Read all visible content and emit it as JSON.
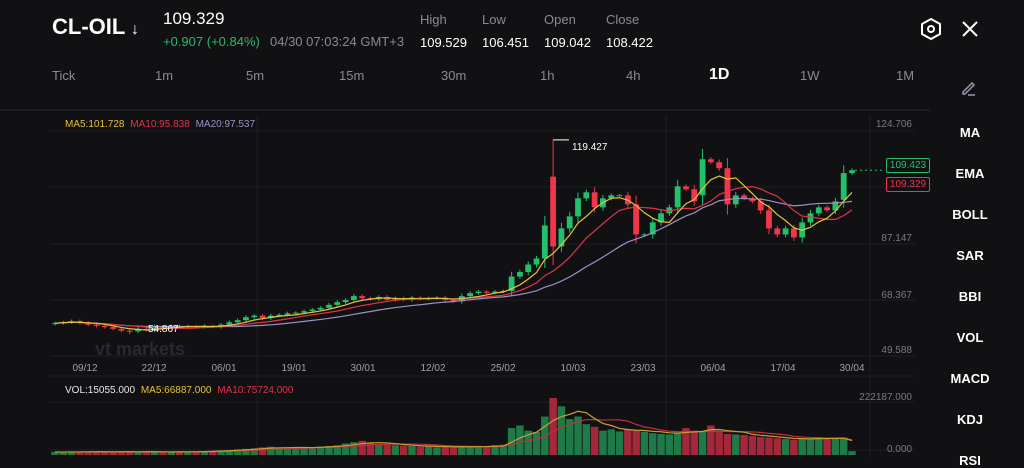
{
  "header": {
    "symbol": "CL-OIL",
    "symbol_arrow": "↓",
    "last_price": "109.329",
    "change": "+0.907 (+0.84%)",
    "timestamp": "04/30 07:03:24 GMT+3",
    "stats": [
      {
        "label": "High",
        "value": "109.529"
      },
      {
        "label": "Low",
        "value": "106.451"
      },
      {
        "label": "Open",
        "value": "109.042"
      },
      {
        "label": "Close",
        "value": "108.422"
      }
    ],
    "settings_icon": "hexagon-gear-icon",
    "close_icon": "close-icon"
  },
  "timeframes": [
    "Tick",
    "1m",
    "5m",
    "15m",
    "30m",
    "1h",
    "4h",
    "1D",
    "1W",
    "1M"
  ],
  "active_timeframe": "1D",
  "indicators": [
    "MA",
    "EMA",
    "BOLL",
    "SAR",
    "BBI",
    "VOL",
    "MACD",
    "KDJ",
    "RSI"
  ],
  "draw_icon": "pencil-icon",
  "colors": {
    "up": "#22c06a",
    "down": "#f0364a",
    "ma5": "#e8c23a",
    "ma10": "#e0344a",
    "ma20": "#9a90c8",
    "background": "#111113"
  },
  "price_legend": {
    "ma5": "MA5:101.728",
    "ma10": "MA10:95.838",
    "ma20": "MA20:97.537"
  },
  "volume_legend": {
    "vol": "VOL:15055.000",
    "ma5": "MA5:66887.000",
    "ma10": "MA10:75724.000"
  },
  "price_axis": [
    "124.706",
    "87.147",
    "68.367",
    "49.588"
  ],
  "volume_axis": [
    "222187.000",
    "0.000"
  ],
  "date_labels": [
    "09/12",
    "22/12",
    "06/01",
    "19/01",
    "30/01",
    "12/02",
    "25/02",
    "10/03",
    "23/03",
    "06/04",
    "17/04",
    "30/04"
  ],
  "max_label": "119.427",
  "min_label": "54.867",
  "ask_price": "109.423",
  "bid_price": "109.329",
  "watermark": "vt markets",
  "chart_data": {
    "type": "candlestick",
    "price_range": [
      49.588,
      124.706
    ],
    "volume_range": [
      0,
      222187
    ],
    "closes": [
      58.5,
      58.8,
      59.2,
      58.6,
      58,
      57.6,
      57.2,
      56.6,
      56,
      55.8,
      56.6,
      56.2,
      57.4,
      57.2,
      57.6,
      57.3,
      57.5,
      57.2,
      57.6,
      57.3,
      58,
      58.8,
      59.5,
      60.5,
      61,
      60.2,
      61,
      61.3,
      61.8,
      62,
      62.5,
      63,
      63.6,
      64.6,
      65.5,
      66.2,
      67.5,
      66.8,
      66.5,
      67.2,
      66.3,
      66.8,
      66.3,
      67,
      66.6,
      66.8,
      67,
      66.2,
      65.8,
      67.5,
      68.5,
      69,
      68.6,
      69,
      69.2,
      74,
      75.5,
      78,
      80,
      91,
      84,
      90,
      94,
      100,
      102,
      97,
      100,
      101,
      101,
      98,
      88,
      88,
      92,
      95,
      97,
      104,
      103,
      99,
      113,
      112,
      110,
      98,
      101,
      100,
      99,
      96,
      90,
      88,
      90,
      87,
      92,
      95,
      97,
      96,
      99,
      108.4,
      109.329
    ],
    "opens": {
      "60": 107.2,
      "78": 101,
      "95": 99.5
    },
    "high": 119.427,
    "low": 54.867,
    "volumes": [
      12000,
      11000,
      13000,
      12000,
      14000,
      13000,
      12000,
      11000,
      13000,
      14000,
      12000,
      13000,
      12000,
      11000,
      12000,
      13000,
      14000,
      12000,
      15000,
      16000,
      18000,
      20000,
      22000,
      24000,
      26000,
      30000,
      32000,
      28000,
      27000,
      29000,
      30000,
      31000,
      33000,
      35000,
      38000,
      45000,
      50000,
      55000,
      48000,
      42000,
      40000,
      38000,
      36000,
      35000,
      33000,
      34000,
      30000,
      32000,
      31000,
      34000,
      33000,
      32000,
      34000,
      38000,
      40000,
      105000,
      115000,
      95000,
      90000,
      150000,
      222187,
      190000,
      140000,
      150000,
      120000,
      110000,
      95000,
      100000,
      92000,
      100000,
      95000,
      90000,
      85000,
      82000,
      80000,
      88000,
      105000,
      95000,
      92000,
      115000,
      90000,
      82000,
      80000,
      78000,
      74000,
      70000,
      68000,
      65000,
      62000,
      60000,
      65000,
      62000,
      70000,
      63000,
      66000,
      68000,
      15055
    ]
  }
}
